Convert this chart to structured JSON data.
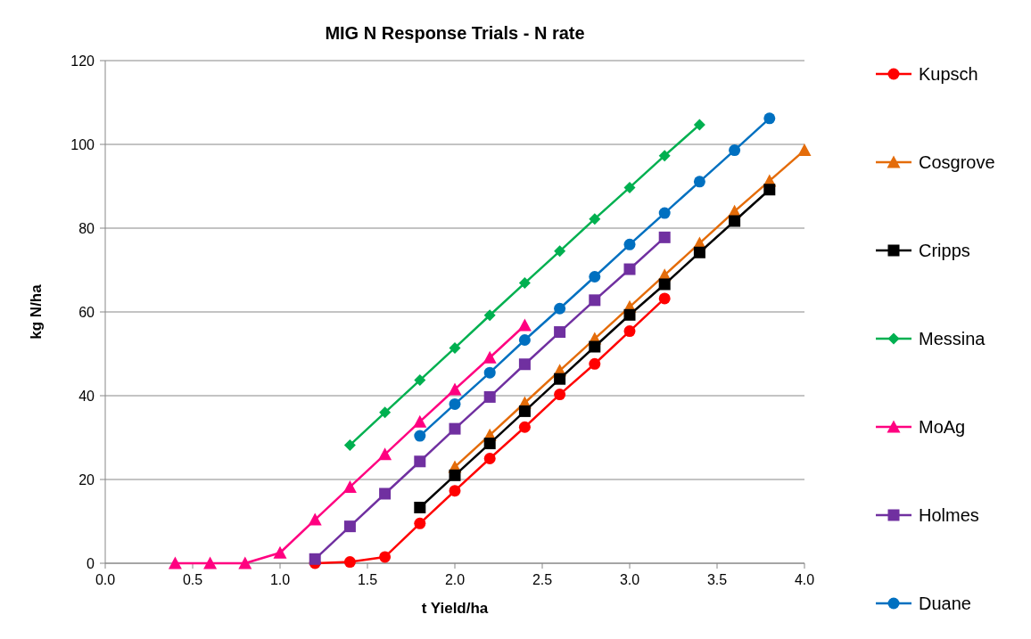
{
  "chart_data": {
    "type": "line",
    "title": "MIG N Response Trials - N rate",
    "xlabel": "t Yield/ha",
    "ylabel": "kg N/ha",
    "xlim": [
      0,
      4
    ],
    "xticks": [
      {
        "value": 0,
        "label": "0.0"
      },
      {
        "value": 0.5,
        "label": "0.5"
      },
      {
        "value": 1,
        "label": "1.0"
      },
      {
        "value": 1.5,
        "label": "1.5"
      },
      {
        "value": 2,
        "label": "2.0"
      },
      {
        "value": 2.5,
        "label": "2.5"
      },
      {
        "value": 3,
        "label": "3.0"
      },
      {
        "value": 3.5,
        "label": "3.5"
      },
      {
        "value": 4,
        "label": "4.0"
      }
    ],
    "ylim": [
      0,
      120
    ],
    "yticks": [
      0,
      20,
      40,
      60,
      80,
      100,
      120
    ],
    "grid": "y",
    "legend": "right",
    "line_style": "solid",
    "series": [
      {
        "name": "Kupsch",
        "color": "#ff0000",
        "marker": "circle",
        "x": [
          1.2,
          1.4,
          1.6,
          1.8,
          2.0,
          2.2,
          2.4,
          2.6,
          2.8,
          3.0,
          3.2
        ],
        "values": [
          0,
          0.3,
          1.5,
          9.5,
          17.3,
          25,
          32.5,
          40.3,
          47.6,
          55.4,
          63.2
        ]
      },
      {
        "name": "Cosgrove",
        "color": "#e46c0a",
        "marker": "triangle",
        "x": [
          2.0,
          2.2,
          2.4,
          2.6,
          2.8,
          3.0,
          3.2,
          3.4,
          3.6,
          3.8,
          4.0
        ],
        "values": [
          23,
          30.6,
          38.3,
          46,
          53.6,
          61.2,
          68.8,
          76.4,
          84,
          91.3,
          98.6
        ]
      },
      {
        "name": "Cripps",
        "color": "#000000",
        "marker": "square",
        "x": [
          1.8,
          2.0,
          2.2,
          2.4,
          2.6,
          2.8,
          3.0,
          3.2,
          3.4,
          3.6,
          3.8
        ],
        "values": [
          13.3,
          21,
          28.6,
          36.3,
          44,
          51.7,
          59.3,
          66.6,
          74.2,
          81.7,
          89.2
        ]
      },
      {
        "name": "Messina",
        "color": "#00b050",
        "marker": "diamond",
        "x": [
          1.4,
          1.6,
          1.8,
          2.0,
          2.2,
          2.4,
          2.6,
          2.8,
          3.0,
          3.2,
          3.4
        ],
        "values": [
          28.2,
          36,
          43.7,
          51.4,
          59.2,
          66.9,
          74.5,
          82.2,
          89.7,
          97.3,
          104.7
        ]
      },
      {
        "name": "MoAg",
        "color": "#ff0080",
        "marker": "triangle",
        "x": [
          0.4,
          0.6,
          0.8,
          1.0,
          1.2,
          1.4,
          1.6,
          1.8,
          2.0,
          2.2,
          2.4
        ],
        "values": [
          0,
          0,
          0,
          2.5,
          10.4,
          18.2,
          26,
          33.8,
          41.5,
          49.1,
          56.8
        ]
      },
      {
        "name": "Holmes",
        "color": "#7030a0",
        "marker": "square",
        "x": [
          1.2,
          1.4,
          1.6,
          1.8,
          2.0,
          2.2,
          2.4,
          2.6,
          2.8,
          3.0,
          3.2
        ],
        "values": [
          1,
          8.8,
          16.6,
          24.3,
          32.1,
          39.7,
          47.5,
          55.2,
          62.8,
          70.2,
          77.8
        ]
      },
      {
        "name": "Duane",
        "color": "#0070c0",
        "marker": "circle",
        "x": [
          1.8,
          2.0,
          2.2,
          2.4,
          2.6,
          2.8,
          3.0,
          3.2,
          3.4,
          3.6,
          3.8
        ],
        "values": [
          30.4,
          38,
          45.5,
          53.3,
          60.8,
          68.4,
          76.1,
          83.6,
          91.1,
          98.6,
          106.2
        ]
      }
    ]
  }
}
